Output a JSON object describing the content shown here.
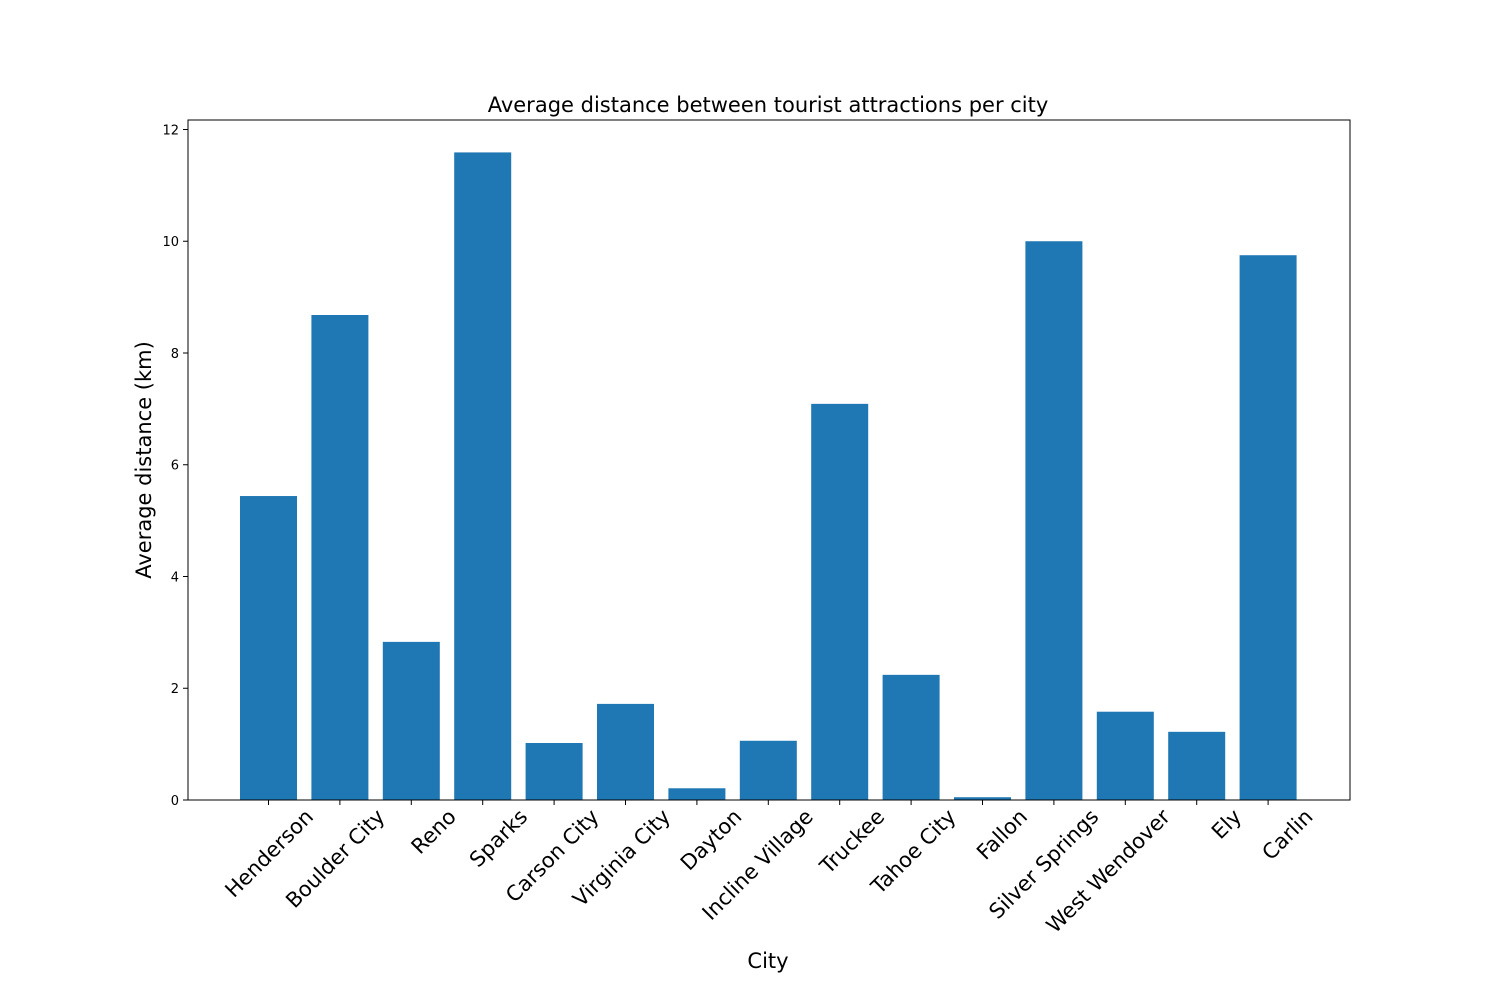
{
  "chart_data": {
    "type": "bar",
    "title": "Average distance between tourist attractions per city",
    "xlabel": "City",
    "ylabel": "Average distance (km)",
    "categories": [
      "Henderson",
      "Boulder City",
      "Reno",
      "Sparks",
      "Carson City",
      "Virginia City",
      "Dayton",
      "Incline Village",
      "Truckee",
      "Tahoe City",
      "Fallon",
      "Silver Springs",
      "West Wendover",
      "Ely",
      "Carlin"
    ],
    "values": [
      5.44,
      8.68,
      2.83,
      11.59,
      1.02,
      1.72,
      0.21,
      1.06,
      7.09,
      2.24,
      0.05,
      10.0,
      1.58,
      1.22,
      9.75
    ],
    "yticks": [
      "0",
      "2",
      "4",
      "6",
      "8",
      "10",
      "12"
    ],
    "ylim": [
      0,
      12.17
    ],
    "bar_color": "#1f77b4",
    "grid": false,
    "legend": "none"
  }
}
